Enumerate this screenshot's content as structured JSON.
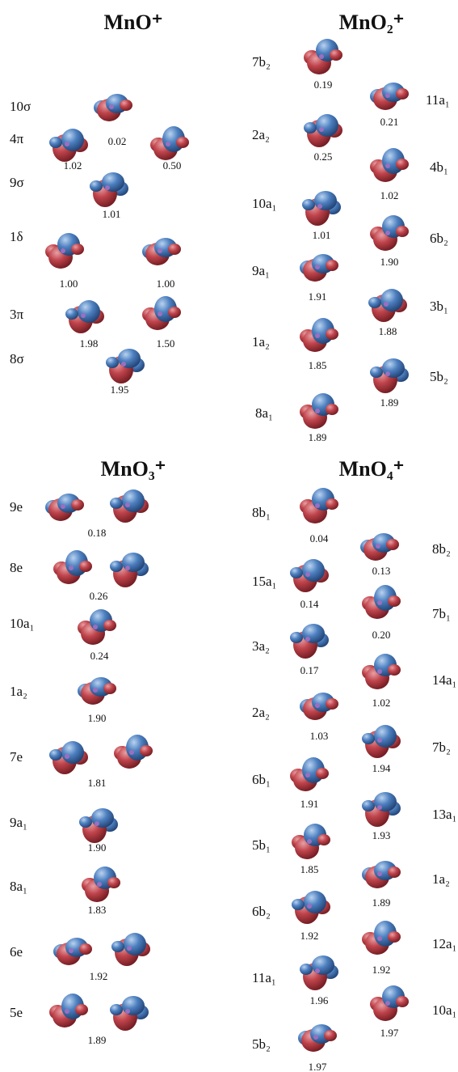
{
  "panels": [
    {
      "title": "MnO⁺",
      "orbitals": [
        {
          "label": "10σ",
          "occupations": [
            "0.02"
          ]
        },
        {
          "label": "4π",
          "occupations": [
            "1.02",
            "0.50"
          ]
        },
        {
          "label": "9σ",
          "occupations": [
            "1.01"
          ]
        },
        {
          "label": "1δ",
          "occupations": [
            "1.00",
            "1.00"
          ]
        },
        {
          "label": "3π",
          "occupations": [
            "1.98",
            "1.50"
          ]
        },
        {
          "label": "8σ",
          "occupations": [
            "1.95"
          ]
        }
      ]
    },
    {
      "title": "MnO₂⁺",
      "orbitals": [
        {
          "label": "7b₂",
          "occupations": [
            "0.19"
          ]
        },
        {
          "label": "11a₁",
          "occupations": [
            "0.21"
          ]
        },
        {
          "label": "2a₂",
          "occupations": [
            "0.25"
          ]
        },
        {
          "label": "4b₁",
          "occupations": [
            "1.02"
          ]
        },
        {
          "label": "10a₁",
          "occupations": [
            "1.01"
          ]
        },
        {
          "label": "6b₂",
          "occupations": [
            "1.90"
          ]
        },
        {
          "label": "9a₁",
          "occupations": [
            "1.91"
          ]
        },
        {
          "label": "3b₁",
          "occupations": [
            "1.88"
          ]
        },
        {
          "label": "1a₂",
          "occupations": [
            "1.85"
          ]
        },
        {
          "label": "5b₂",
          "occupations": [
            "1.89"
          ]
        },
        {
          "label": "8a₁",
          "occupations": [
            "1.89"
          ]
        }
      ]
    },
    {
      "title": "MnO₃⁺",
      "orbitals": [
        {
          "label": "9e",
          "occupations": [
            "0.18"
          ]
        },
        {
          "label": "8e",
          "occupations": [
            "0.26"
          ]
        },
        {
          "label": "10a₁",
          "occupations": [
            "0.24"
          ]
        },
        {
          "label": "1a₂",
          "occupations": [
            "1.90"
          ]
        },
        {
          "label": "7e",
          "occupations": [
            "1.81"
          ]
        },
        {
          "label": "9a₁",
          "occupations": [
            "1.90"
          ]
        },
        {
          "label": "8a₁",
          "occupations": [
            "1.83"
          ]
        },
        {
          "label": "6e",
          "occupations": [
            "1.92"
          ]
        },
        {
          "label": "5e",
          "occupations": [
            "1.89"
          ]
        }
      ]
    },
    {
      "title": "MnO₄⁺",
      "orbitals": [
        {
          "label": "8b₁",
          "occupations": [
            "0.04"
          ]
        },
        {
          "label": "8b₂",
          "occupations": [
            "0.13"
          ]
        },
        {
          "label": "15a₁",
          "occupations": [
            "0.14"
          ]
        },
        {
          "label": "7b₁",
          "occupations": [
            "0.20"
          ]
        },
        {
          "label": "3a₂",
          "occupations": [
            "0.17"
          ]
        },
        {
          "label": "14a₁",
          "occupations": [
            "1.02"
          ]
        },
        {
          "label": "2a₂",
          "occupations": [
            "1.03"
          ]
        },
        {
          "label": "7b₂",
          "occupations": [
            "1.94"
          ]
        },
        {
          "label": "6b₁",
          "occupations": [
            "1.91"
          ]
        },
        {
          "label": "13a₁",
          "occupations": [
            "1.93"
          ]
        },
        {
          "label": "5b₁",
          "occupations": [
            "1.85"
          ]
        },
        {
          "label": "1a₂",
          "occupations": [
            "1.89"
          ]
        },
        {
          "label": "6b₂",
          "occupations": [
            "1.92"
          ]
        },
        {
          "label": "12a₁",
          "occupations": [
            "1.92"
          ]
        },
        {
          "label": "11a₁",
          "occupations": [
            "1.96"
          ]
        },
        {
          "label": "10a₁",
          "occupations": [
            "1.97"
          ]
        },
        {
          "label": "5b₂",
          "occupations": [
            "1.97"
          ]
        }
      ]
    }
  ]
}
